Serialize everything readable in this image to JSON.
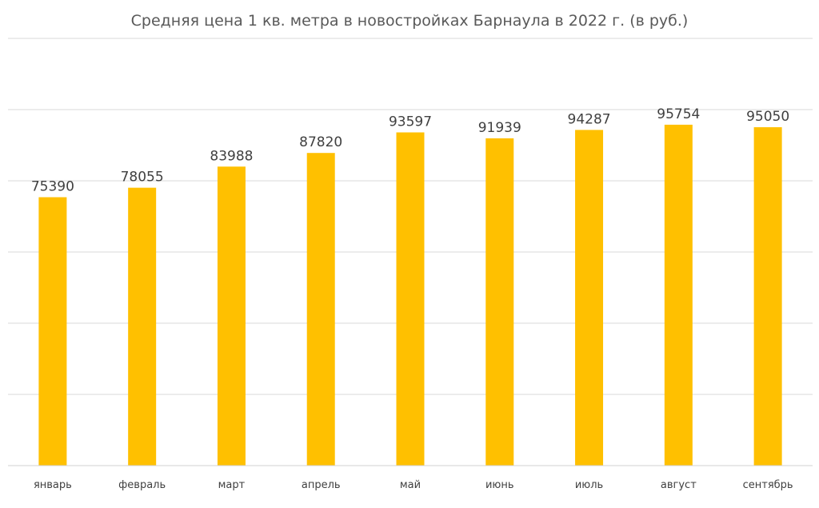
{
  "chart_data": {
    "type": "bar",
    "title": "Средняя цена 1 кв. метра в новостройках Барнаула в 2022 г. (в руб.)",
    "categories": [
      "январь",
      "февраль",
      "март",
      "апрель",
      "май",
      "июнь",
      "июль",
      "август",
      "сентябрь"
    ],
    "values": [
      75390,
      78055,
      83988,
      87820,
      93597,
      91939,
      94287,
      95754,
      95050
    ],
    "ylim": [
      0,
      120000
    ],
    "y_gridlines": [
      20000,
      40000,
      60000,
      80000,
      100000,
      120000
    ],
    "y_tick_labels_visible": false,
    "grid": true,
    "legend": "none",
    "data_labels": true,
    "colors": {
      "bar": "#ffc000",
      "grid": "#d9d9d9",
      "text": "#404040",
      "title": "#595959"
    }
  }
}
